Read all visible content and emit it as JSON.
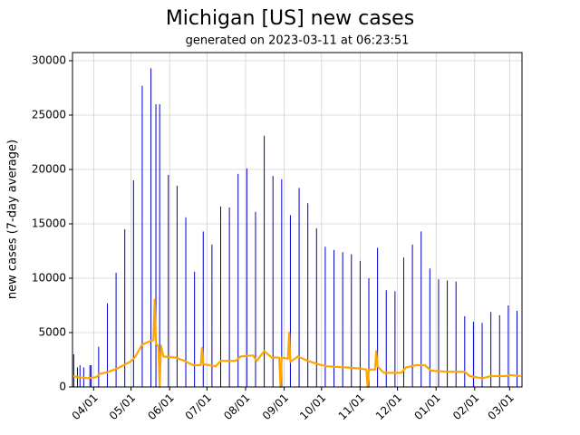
{
  "chart_data": {
    "type": "bar-line",
    "title": "Michigan [US] new cases",
    "subtitle": "generated on 2023-03-11 at 06:23:51",
    "y_label": "new cases (7-day average)",
    "xlim": [
      "03/15",
      "03/11"
    ],
    "xticks": [
      "04/01",
      "05/01",
      "06/01",
      "07/01",
      "08/01",
      "09/01",
      "10/01",
      "11/01",
      "12/01",
      "01/01",
      "02/01",
      "03/01"
    ],
    "ylim": [
      0,
      30750
    ],
    "yticks": [
      0,
      5000,
      10000,
      15000,
      20000,
      25000,
      30000
    ],
    "grid": true,
    "bars": {
      "color": "#0000cc",
      "x": [
        "03/16",
        "03/19",
        "03/21",
        "03/24",
        "03/29",
        "03/30",
        "04/05",
        "04/12",
        "04/19",
        "04/26",
        "05/03",
        "05/10",
        "05/17",
        "05/21",
        "05/24",
        "05/31",
        "06/07",
        "06/14",
        "06/21",
        "06/28",
        "07/05",
        "07/12",
        "07/19",
        "07/26",
        "08/02",
        "08/09",
        "08/16",
        "08/23",
        "08/30",
        "09/06",
        "09/13",
        "09/20",
        "09/27",
        "10/04",
        "10/11",
        "10/18",
        "10/25",
        "11/01",
        "11/08",
        "11/15",
        "11/22",
        "11/29",
        "12/06",
        "12/13",
        "12/20",
        "12/27",
        "01/03",
        "01/10",
        "01/17",
        "01/24",
        "01/31",
        "02/07",
        "02/14",
        "02/21",
        "02/28",
        "03/07"
      ],
      "values": [
        3000,
        1800,
        2000,
        1800,
        2000,
        2000,
        3700,
        7700,
        10500,
        14500,
        19000,
        27700,
        29300,
        26000,
        26000,
        19500,
        18500,
        15600,
        10600,
        14300,
        13100,
        16600,
        16500,
        19600,
        20100,
        16100,
        23100,
        19400,
        19100,
        15800,
        18300,
        16900,
        14600,
        12900,
        12600,
        12400,
        12200,
        11600,
        10000,
        12800,
        8900,
        8800,
        11900,
        13100,
        14300,
        10900,
        9900,
        9800,
        9700,
        6500,
        6000,
        5900,
        6900,
        6600,
        7500,
        7000
      ]
    },
    "line": {
      "color": "#ffa500",
      "x": [
        "03/15",
        "03/20",
        "03/27",
        "04/03",
        "04/06",
        "04/13",
        "04/20",
        "04/25",
        "04/30",
        "05/04",
        "05/10",
        "05/16",
        "05/19",
        "05/20",
        "05/21",
        "05/23",
        "05/24",
        "05/25",
        "05/27",
        "06/06",
        "06/13",
        "06/20",
        "06/26",
        "06/27",
        "06/28",
        "07/08",
        "07/12",
        "07/24",
        "07/28",
        "08/07",
        "08/10",
        "08/16",
        "08/22",
        "08/28",
        "08/29",
        "08/30",
        "09/04",
        "09/05",
        "09/06",
        "09/12",
        "09/20",
        "09/28",
        "10/05",
        "10/20",
        "11/01",
        "11/06",
        "11/07",
        "11/08",
        "11/13",
        "11/14",
        "11/15",
        "11/20",
        "12/04",
        "12/08",
        "12/16",
        "12/23",
        "12/28",
        "01/10",
        "01/24",
        "01/28",
        "02/07",
        "02/14",
        "02/26",
        "03/01",
        "03/10"
      ],
      "values": [
        1000,
        900,
        800,
        900,
        1200,
        1400,
        1700,
        2000,
        2300,
        2700,
        3900,
        4200,
        4300,
        8000,
        4000,
        3700,
        0,
        3800,
        2800,
        2700,
        2400,
        2000,
        2000,
        3600,
        2100,
        1900,
        2400,
        2400,
        2800,
        2900,
        2400,
        3300,
        2700,
        2700,
        0,
        2700,
        2600,
        5000,
        2300,
        2800,
        2400,
        2100,
        1900,
        1800,
        1700,
        1600,
        0,
        1600,
        1600,
        3300,
        1900,
        1300,
        1300,
        1800,
        2000,
        2000,
        1500,
        1400,
        1400,
        1000,
        800,
        1000,
        1000,
        1100,
        1000
      ]
    }
  }
}
